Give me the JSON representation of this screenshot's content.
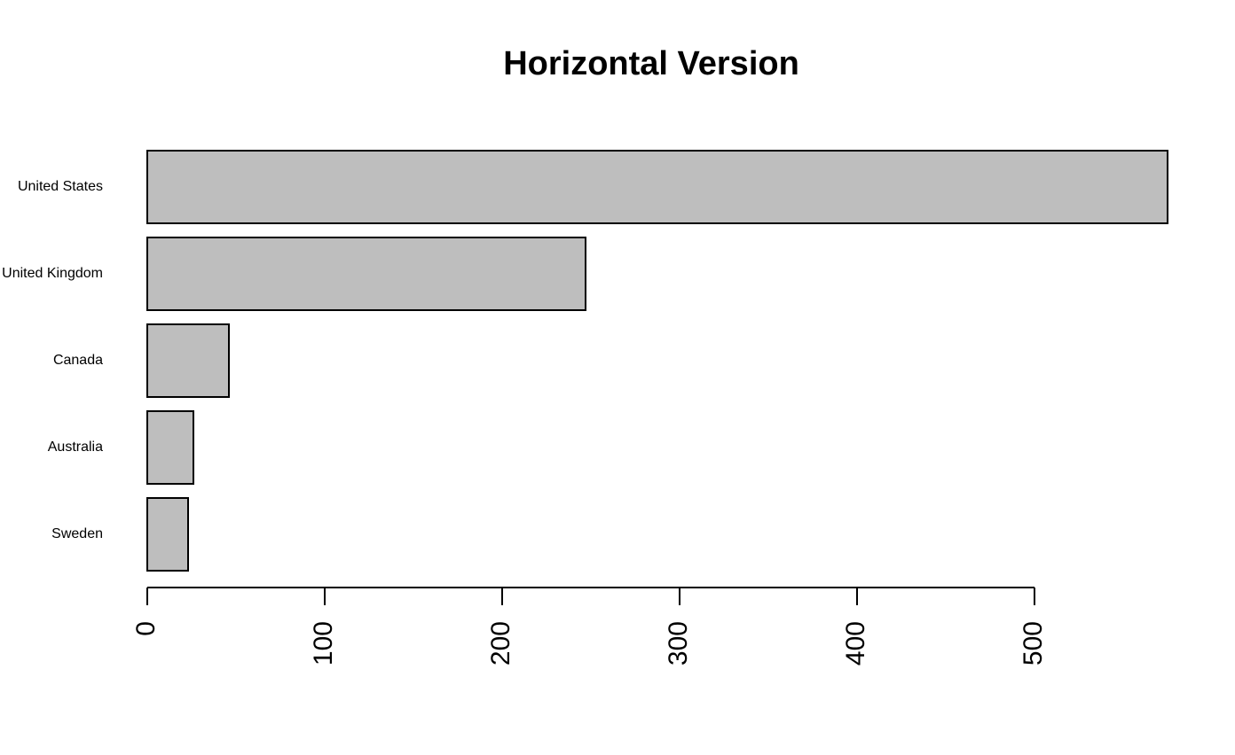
{
  "chart_data": {
    "type": "bar",
    "orientation": "horizontal",
    "title": "Horizontal Version",
    "categories": [
      "United States",
      "United Kingdom",
      "Canada",
      "Australia",
      "Sweden"
    ],
    "values": [
      575,
      247,
      46,
      26,
      23
    ],
    "color": "#bebebe",
    "xlim": [
      0,
      575
    ],
    "xticks": [
      0,
      100,
      200,
      300,
      400,
      500
    ]
  }
}
